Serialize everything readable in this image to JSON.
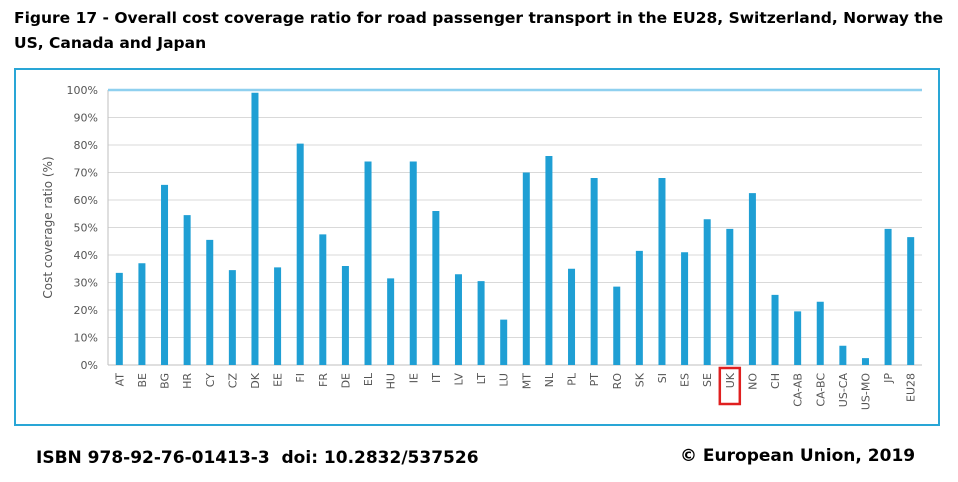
{
  "figure": {
    "title": "Figure 17 - Overall cost coverage ratio for road passenger transport in the EU28, Switzerland, Norway the US, Canada and Japan"
  },
  "footer": {
    "isbn": "ISBN 978-92-76-01413-3",
    "doi": "doi: 10.2832/537526",
    "copyright": "© European Union, 2019"
  },
  "chart_data": {
    "type": "bar",
    "ylabel": "Cost coverage ratio (%)",
    "ylim": [
      0,
      100
    ],
    "yticks": [
      "0%",
      "10%",
      "20%",
      "30%",
      "40%",
      "50%",
      "60%",
      "70%",
      "80%",
      "90%",
      "100%"
    ],
    "grid": true,
    "reference_line": 100,
    "highlighted_category": "UK",
    "colors": {
      "bar": "#1f9fd4",
      "reference_line": "#8fd0ef",
      "highlight_box": "#e02020",
      "frame": "#29a6d6",
      "grid": "#d9d9d9"
    },
    "categories": [
      "AT",
      "BE",
      "BG",
      "HR",
      "CY",
      "CZ",
      "DK",
      "EE",
      "FI",
      "FR",
      "DE",
      "EL",
      "HU",
      "IE",
      "IT",
      "LV",
      "LT",
      "LU",
      "MT",
      "NL",
      "PL",
      "PT",
      "RO",
      "SK",
      "SI",
      "ES",
      "SE",
      "UK",
      "NO",
      "CH",
      "CA-AB",
      "CA-BC",
      "US-CA",
      "US-MO",
      "JP",
      "EU28"
    ],
    "values": [
      33.5,
      37,
      65.5,
      54.5,
      45.5,
      34.5,
      99,
      35.5,
      80.5,
      47.5,
      36,
      74,
      31.5,
      74,
      56,
      33,
      30.5,
      16.5,
      70,
      76,
      35,
      68,
      28.5,
      41.5,
      68,
      41,
      53,
      49.5,
      62.5,
      25.5,
      19.5,
      23,
      7,
      2.5,
      49.5,
      46.5
    ]
  }
}
